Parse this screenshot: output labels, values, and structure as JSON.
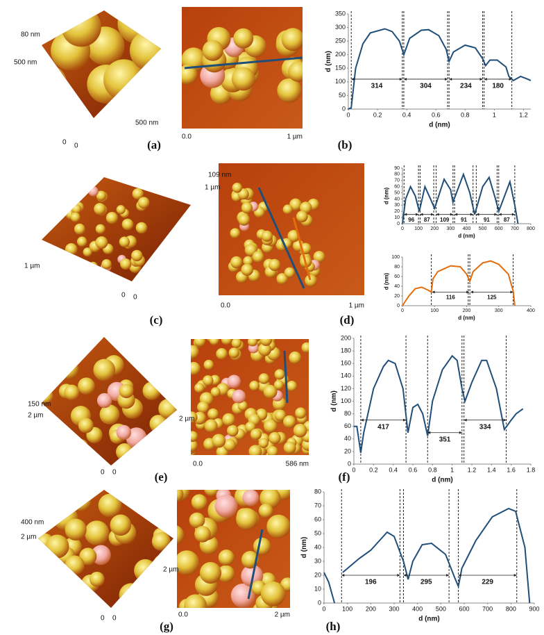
{
  "panels": [
    {
      "label": "(a)",
      "texts_3d": [
        "80 nm",
        "500 nm",
        "500 nm",
        "0",
        "0"
      ],
      "texts_2d": [
        "0.0",
        "1 µm"
      ]
    },
    {
      "label": "(b)"
    },
    {
      "label": "(c)",
      "texts_3d": [
        "109 nm",
        "1 µm",
        "1 µm",
        "0",
        "0"
      ],
      "texts_2d": [
        "0.0",
        "1 µm"
      ]
    },
    {
      "label": "(d)"
    },
    {
      "label": "(e)",
      "texts_3d": [
        "150 nm",
        "2 µm",
        "2 µm",
        "0",
        "0"
      ],
      "texts_2d": [
        "0.0",
        "586 nm"
      ]
    },
    {
      "label": "(f)"
    },
    {
      "label": "(g)",
      "texts_3d": [
        "400 nm",
        "2 µm",
        "2 µm",
        "0",
        "0"
      ],
      "texts_2d": [
        "0.0",
        "2 µm"
      ]
    },
    {
      "label": "(h)"
    }
  ],
  "chart_data": [
    {
      "type": "line",
      "xlabel": "d (nm)",
      "ylabel": "d (nm)",
      "xlim": [
        0,
        1.25
      ],
      "xticks": [
        0,
        0.2,
        0.4,
        0.6,
        0.8,
        1,
        1.2
      ],
      "ylim": [
        0,
        350
      ],
      "yticks": [
        0,
        50,
        100,
        150,
        200,
        250,
        300,
        350
      ],
      "series": [
        {
          "color": "#1f4e79",
          "x": [
            0,
            0.02,
            0.05,
            0.1,
            0.15,
            0.25,
            0.3,
            0.35,
            0.38,
            0.42,
            0.5,
            0.55,
            0.62,
            0.67,
            0.69,
            0.72,
            0.8,
            0.87,
            0.92,
            0.94,
            0.97,
            1.02,
            1.08,
            1.1,
            1.13,
            1.18,
            1.22,
            1.25
          ],
          "values": [
            0,
            5,
            150,
            240,
            280,
            295,
            285,
            250,
            200,
            260,
            290,
            292,
            270,
            220,
            175,
            210,
            235,
            225,
            185,
            160,
            180,
            180,
            155,
            120,
            105,
            120,
            112,
            105
          ]
        }
      ],
      "vlines": [
        0.02,
        0.37,
        0.38,
        0.68,
        0.69,
        0.92,
        0.93,
        1.12
      ],
      "annotations": [
        {
          "label": "314",
          "span": [
            0.02,
            0.37
          ],
          "y": 110
        },
        {
          "label": "304",
          "span": [
            0.38,
            0.68
          ],
          "y": 110
        },
        {
          "label": "234",
          "span": [
            0.69,
            0.92
          ],
          "y": 110
        },
        {
          "label": "180",
          "span": [
            0.93,
            1.12
          ],
          "y": 110
        }
      ]
    },
    {
      "type": "line",
      "xlabel": "d (nm)",
      "ylabel": "d (nm)",
      "xlim": [
        0,
        800
      ],
      "xticks": [
        0,
        100,
        200,
        300,
        400,
        500,
        600,
        700,
        800
      ],
      "ylim": [
        0,
        90
      ],
      "yticks": [
        0,
        10,
        20,
        30,
        40,
        50,
        60,
        70,
        80,
        90
      ],
      "series": [
        {
          "color": "#1f4e79",
          "x": [
            0,
            20,
            50,
            80,
            105,
            140,
            175,
            200,
            260,
            300,
            315,
            380,
            420,
            450,
            500,
            540,
            580,
            600,
            670,
            700,
            720
          ],
          "values": [
            0,
            40,
            60,
            45,
            20,
            60,
            40,
            25,
            72,
            55,
            35,
            80,
            50,
            15,
            60,
            75,
            40,
            20,
            68,
            30,
            0
          ]
        }
      ],
      "vlines": [
        10,
        100,
        110,
        195,
        210,
        315,
        325,
        440,
        460,
        590,
        600,
        700
      ],
      "annotations": [
        {
          "label": "96",
          "span": [
            10,
            100
          ],
          "y": 15
        },
        {
          "label": "87",
          "span": [
            110,
            195
          ],
          "y": 15
        },
        {
          "label": "109",
          "span": [
            210,
            315
          ],
          "y": 15
        },
        {
          "label": "91",
          "span": [
            325,
            440
          ],
          "y": 15
        },
        {
          "label": "91",
          "span": [
            460,
            590
          ],
          "y": 15
        },
        {
          "label": "87",
          "span": [
            600,
            700
          ],
          "y": 15
        }
      ]
    },
    {
      "type": "line",
      "xlabel": "d (nm)",
      "ylabel": "d (nm)",
      "xlim": [
        0,
        400
      ],
      "xticks": [
        0,
        100,
        200,
        300,
        400
      ],
      "ylim": [
        0,
        100
      ],
      "yticks": [
        0,
        20,
        40,
        60,
        80,
        100
      ],
      "series": [
        {
          "color": "#e46c0a",
          "x": [
            0,
            20,
            40,
            60,
            80,
            90,
            95,
            110,
            150,
            180,
            200,
            210,
            220,
            250,
            275,
            300,
            330,
            345,
            350
          ],
          "values": [
            0,
            20,
            35,
            38,
            32,
            28,
            55,
            70,
            82,
            80,
            65,
            50,
            70,
            88,
            92,
            85,
            65,
            30,
            0
          ]
        }
      ],
      "vlines": [
        90,
        205,
        210,
        345
      ],
      "annotations": [
        {
          "label": "116",
          "span": [
            92,
            208
          ],
          "y": 28
        },
        {
          "label": "125",
          "span": [
            212,
            345
          ],
          "y": 28
        }
      ]
    },
    {
      "type": "line",
      "xlabel": "d (nm)",
      "ylabel": "d (nm)",
      "xlim": [
        0,
        1.8
      ],
      "xticks": [
        0,
        0.2,
        0.4,
        0.6,
        0.8,
        1,
        1.2,
        1.4,
        1.6,
        1.8
      ],
      "ylim": [
        0,
        200
      ],
      "yticks": [
        0,
        20,
        40,
        60,
        80,
        100,
        120,
        140,
        160,
        180,
        200
      ],
      "series": [
        {
          "color": "#1f4e79",
          "x": [
            0,
            0.03,
            0.07,
            0.1,
            0.2,
            0.3,
            0.35,
            0.42,
            0.5,
            0.55,
            0.6,
            0.65,
            0.7,
            0.75,
            0.8,
            0.9,
            1,
            1.05,
            1.1,
            1.13,
            1.2,
            1.3,
            1.35,
            1.45,
            1.53,
            1.6,
            1.65,
            1.72
          ],
          "values": [
            60,
            60,
            18,
            50,
            120,
            155,
            165,
            160,
            120,
            50,
            90,
            95,
            80,
            45,
            100,
            150,
            172,
            165,
            120,
            100,
            130,
            165,
            165,
            120,
            55,
            70,
            80,
            88
          ]
        }
      ],
      "vlines": [
        0.07,
        0.53,
        0.75,
        1.1,
        1.12,
        1.55
      ],
      "annotations": [
        {
          "label": "417",
          "span": [
            0.07,
            0.53
          ],
          "y": 70
        },
        {
          "label": "351",
          "span": [
            0.75,
            1.1
          ],
          "y": 50
        },
        {
          "label": "334",
          "span": [
            1.12,
            1.55
          ],
          "y": 70
        }
      ]
    },
    {
      "type": "line",
      "xlabel": "d (nm)",
      "ylabel": "d (nm)",
      "xlim": [
        0,
        900
      ],
      "xticks": [
        0,
        100,
        200,
        300,
        400,
        500,
        600,
        700,
        800,
        900
      ],
      "ylim": [
        0,
        80
      ],
      "yticks": [
        0,
        10,
        20,
        30,
        40,
        50,
        60,
        70,
        80
      ],
      "series": [
        {
          "color": "#1f4e79",
          "x": [
            0,
            20,
            45,
            null,
            80,
            150,
            200,
            270,
            300,
            340,
            360,
            380,
            420,
            460,
            520,
            560,
            575,
            590,
            650,
            720,
            790,
            820,
            860,
            880
          ],
          "values": [
            22,
            15,
            0,
            null,
            22,
            32,
            38,
            51,
            48,
            30,
            17,
            30,
            42,
            43,
            35,
            18,
            12,
            25,
            45,
            62,
            68,
            66,
            40,
            0
          ]
        }
      ],
      "vlines": [
        75,
        325,
        340,
        535,
        575,
        825
      ],
      "annotations": [
        {
          "label": "196",
          "span": [
            75,
            325
          ],
          "y": 20
        },
        {
          "label": "295",
          "span": [
            340,
            535
          ],
          "y": 20
        },
        {
          "label": "229",
          "span": [
            575,
            825
          ],
          "y": 20
        }
      ]
    }
  ]
}
